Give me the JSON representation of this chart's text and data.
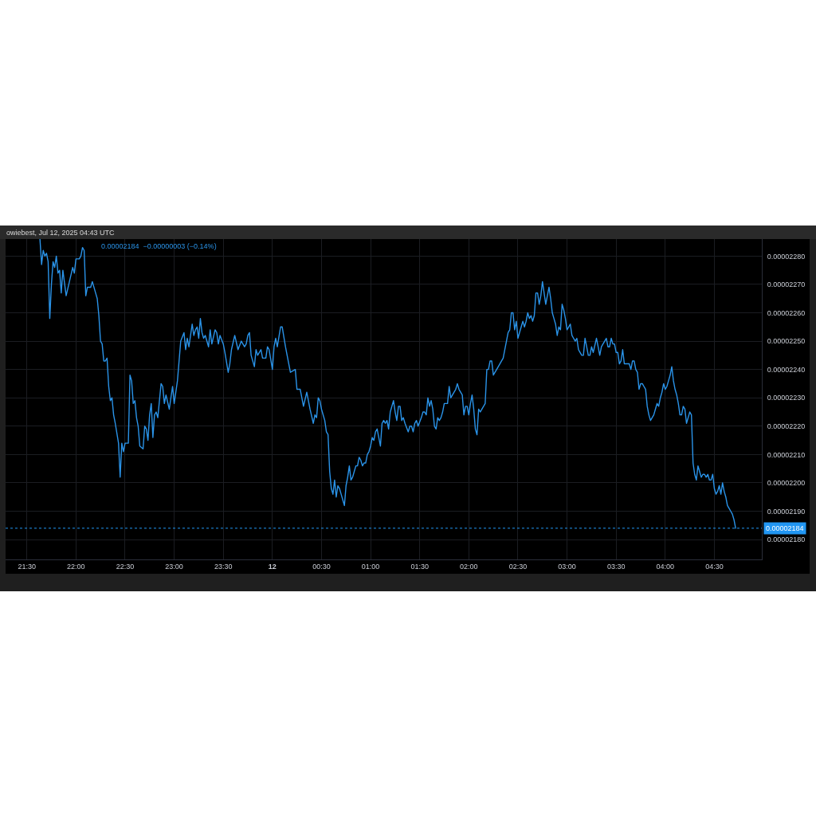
{
  "chart_data": {
    "type": "line",
    "subtitle": "0.00002184  −0.00000003 (−0.14%)",
    "annotations": [
      "owiebest, Jul 12, 2025 04:43 UTC"
    ],
    "x": [
      "2025-07-11T21:38",
      "2025-07-11T21:39",
      "2025-07-11T21:40",
      "2025-07-11T21:41",
      "2025-07-11T21:42",
      "2025-07-11T21:43",
      "2025-07-11T21:44",
      "2025-07-11T21:45",
      "2025-07-11T21:46",
      "2025-07-11T21:47",
      "2025-07-11T21:48",
      "2025-07-11T21:49",
      "2025-07-11T21:50",
      "2025-07-11T21:51",
      "2025-07-11T21:52",
      "2025-07-11T21:54",
      "2025-07-11T21:56",
      "2025-07-11T21:58",
      "2025-07-11T21:59",
      "2025-07-11T22:00",
      "2025-07-11T22:02",
      "2025-07-11T22:03",
      "2025-07-11T22:04",
      "2025-07-11T22:05",
      "2025-07-11T22:06",
      "2025-07-11T22:07",
      "2025-07-11T22:09",
      "2025-07-11T22:10",
      "2025-07-11T22:12",
      "2025-07-11T22:13",
      "2025-07-11T22:14",
      "2025-07-11T22:15",
      "2025-07-11T22:16",
      "2025-07-11T22:17",
      "2025-07-11T22:18",
      "2025-07-11T22:19",
      "2025-07-11T22:20",
      "2025-07-11T22:21",
      "2025-07-11T22:22",
      "2025-07-11T22:23",
      "2025-07-11T22:24",
      "2025-07-11T22:26",
      "2025-07-11T22:27",
      "2025-07-11T22:28",
      "2025-07-11T22:29",
      "2025-07-11T22:30",
      "2025-07-11T22:32",
      "2025-07-11T22:33",
      "2025-07-11T22:34",
      "2025-07-11T22:35",
      "2025-07-11T22:36",
      "2025-07-11T22:37",
      "2025-07-11T22:38",
      "2025-07-11T22:39",
      "2025-07-11T22:41",
      "2025-07-11T22:42",
      "2025-07-11T22:43",
      "2025-07-11T22:44",
      "2025-07-11T22:45",
      "2025-07-11T22:46",
      "2025-07-11T22:47",
      "2025-07-11T22:48",
      "2025-07-11T22:49",
      "2025-07-11T22:50",
      "2025-07-11T22:52",
      "2025-07-11T22:53",
      "2025-07-11T22:54",
      "2025-07-11T22:55",
      "2025-07-11T22:57",
      "2025-07-11T22:59",
      "2025-07-11T23:00",
      "2025-07-11T23:02",
      "2025-07-11T23:03",
      "2025-07-11T23:04",
      "2025-07-11T23:06",
      "2025-07-11T23:07",
      "2025-07-11T23:08",
      "2025-07-11T23:09",
      "2025-07-11T23:11",
      "2025-07-11T23:12",
      "2025-07-11T23:13",
      "2025-07-11T23:14",
      "2025-07-11T23:15",
      "2025-07-11T23:16",
      "2025-07-11T23:17",
      "2025-07-11T23:18",
      "2025-07-11T23:19",
      "2025-07-11T23:21",
      "2025-07-11T23:22",
      "2025-07-11T23:23",
      "2025-07-11T23:25",
      "2025-07-11T23:26",
      "2025-07-11T23:27",
      "2025-07-11T23:28",
      "2025-07-11T23:30",
      "2025-07-11T23:31",
      "2025-07-11T23:33",
      "2025-07-11T23:34",
      "2025-07-11T23:35",
      "2025-07-11T23:37",
      "2025-07-11T23:39",
      "2025-07-11T23:41",
      "2025-07-11T23:43",
      "2025-07-11T23:44",
      "2025-07-11T23:45",
      "2025-07-11T23:46",
      "2025-07-11T23:47",
      "2025-07-11T23:49",
      "2025-07-11T23:50",
      "2025-07-11T23:51",
      "2025-07-11T23:53",
      "2025-07-11T23:54",
      "2025-07-11T23:56",
      "2025-07-11T23:57",
      "2025-07-11T23:58",
      "2025-07-12T00:00",
      "2025-07-12T00:01",
      "2025-07-12T00:02",
      "2025-07-12T00:03",
      "2025-07-12T00:05",
      "2025-07-12T00:06",
      "2025-07-12T00:08",
      "2025-07-12T00:09",
      "2025-07-12T00:11",
      "2025-07-12T00:14",
      "2025-07-12T00:15",
      "2025-07-12T00:17",
      "2025-07-12T00:19",
      "2025-07-12T00:21",
      "2025-07-12T00:23",
      "2025-07-12T00:25",
      "2025-07-12T00:26",
      "2025-07-12T00:27",
      "2025-07-12T00:28",
      "2025-07-12T00:29",
      "2025-07-12T00:30",
      "2025-07-12T00:32",
      "2025-07-12T00:33",
      "2025-07-12T00:34",
      "2025-07-12T00:35",
      "2025-07-12T00:36",
      "2025-07-12T00:37",
      "2025-07-12T00:38",
      "2025-07-12T00:39",
      "2025-07-12T00:40",
      "2025-07-12T00:41",
      "2025-07-12T00:42",
      "2025-07-12T00:43",
      "2025-07-12T00:44",
      "2025-07-12T00:45",
      "2025-07-12T00:46",
      "2025-07-12T00:47",
      "2025-07-12T00:48",
      "2025-07-12T00:49",
      "2025-07-12T00:50",
      "2025-07-12T00:51",
      "2025-07-12T00:52",
      "2025-07-12T00:53",
      "2025-07-12T00:54",
      "2025-07-12T00:55",
      "2025-07-12T00:56",
      "2025-07-12T00:57",
      "2025-07-12T00:58",
      "2025-07-12T00:59",
      "2025-07-12T01:00",
      "2025-07-12T01:01",
      "2025-07-12T01:02",
      "2025-07-12T01:03",
      "2025-07-12T01:04",
      "2025-07-12T01:05",
      "2025-07-12T01:06",
      "2025-07-12T01:07",
      "2025-07-12T01:08",
      "2025-07-12T01:09",
      "2025-07-12T01:10",
      "2025-07-12T01:11",
      "2025-07-12T01:12",
      "2025-07-12T01:14",
      "2025-07-12T01:15",
      "2025-07-12T01:16",
      "2025-07-12T01:17",
      "2025-07-12T01:18",
      "2025-07-12T01:19",
      "2025-07-12T01:20",
      "2025-07-12T01:21",
      "2025-07-12T01:23",
      "2025-07-12T01:24",
      "2025-07-12T01:25",
      "2025-07-12T01:26",
      "2025-07-12T01:27",
      "2025-07-12T01:28",
      "2025-07-12T01:29",
      "2025-07-12T01:31",
      "2025-07-12T01:32",
      "2025-07-12T01:33",
      "2025-07-12T01:34",
      "2025-07-12T01:35",
      "2025-07-12T01:36",
      "2025-07-12T01:37",
      "2025-07-12T01:38",
      "2025-07-12T01:39",
      "2025-07-12T01:40",
      "2025-07-12T01:41",
      "2025-07-12T01:42",
      "2025-07-12T01:43",
      "2025-07-12T01:44",
      "2025-07-12T01:45",
      "2025-07-12T01:47",
      "2025-07-12T01:48",
      "2025-07-12T01:49",
      "2025-07-12T01:51",
      "2025-07-12T01:52",
      "2025-07-12T01:53",
      "2025-07-12T01:54",
      "2025-07-12T01:55",
      "2025-07-12T01:56",
      "2025-07-12T01:57",
      "2025-07-12T01:58",
      "2025-07-12T01:59",
      "2025-07-12T02:00",
      "2025-07-12T02:01",
      "2025-07-12T02:02",
      "2025-07-12T02:03",
      "2025-07-12T02:04",
      "2025-07-12T02:05",
      "2025-07-12T02:06",
      "2025-07-12T02:07",
      "2025-07-12T02:08",
      "2025-07-12T02:10",
      "2025-07-12T02:11",
      "2025-07-12T02:12",
      "2025-07-12T02:13",
      "2025-07-12T02:14",
      "2025-07-12T02:15",
      "2025-07-12T02:16",
      "2025-07-12T02:17",
      "2025-07-12T02:18",
      "2025-07-12T02:20",
      "2025-07-12T02:21",
      "2025-07-12T02:22",
      "2025-07-12T02:23",
      "2025-07-12T02:24",
      "2025-07-12T02:25",
      "2025-07-12T02:26",
      "2025-07-12T02:27",
      "2025-07-12T02:28",
      "2025-07-12T02:29",
      "2025-07-12T02:30",
      "2025-07-12T02:31",
      "2025-07-12T02:32",
      "2025-07-12T02:33",
      "2025-07-12T02:34",
      "2025-07-12T02:35",
      "2025-07-12T02:36",
      "2025-07-12T02:37",
      "2025-07-12T02:38",
      "2025-07-12T02:39",
      "2025-07-12T02:40",
      "2025-07-12T02:41",
      "2025-07-12T02:42",
      "2025-07-12T02:43",
      "2025-07-12T02:44",
      "2025-07-12T02:45",
      "2025-07-12T02:46",
      "2025-07-12T02:47",
      "2025-07-12T02:48",
      "2025-07-12T02:49",
      "2025-07-12T02:50",
      "2025-07-12T02:51",
      "2025-07-12T02:52",
      "2025-07-12T02:53",
      "2025-07-12T02:54",
      "2025-07-12T02:55",
      "2025-07-12T02:56",
      "2025-07-12T02:57",
      "2025-07-12T02:58",
      "2025-07-12T02:59",
      "2025-07-12T03:00",
      "2025-07-12T03:01",
      "2025-07-12T03:02",
      "2025-07-12T03:03",
      "2025-07-12T03:04",
      "2025-07-12T03:05",
      "2025-07-12T03:06",
      "2025-07-12T03:07",
      "2025-07-12T03:08",
      "2025-07-12T03:09",
      "2025-07-12T03:10",
      "2025-07-12T03:11",
      "2025-07-12T03:12",
      "2025-07-12T03:13",
      "2025-07-12T03:14",
      "2025-07-12T03:15",
      "2025-07-12T03:16",
      "2025-07-12T03:18",
      "2025-07-12T03:19",
      "2025-07-12T03:20",
      "2025-07-12T03:21",
      "2025-07-12T03:23",
      "2025-07-12T03:24",
      "2025-07-12T03:25",
      "2025-07-12T03:26",
      "2025-07-12T03:27",
      "2025-07-12T03:28",
      "2025-07-12T03:29",
      "2025-07-12T03:30",
      "2025-07-12T03:31",
      "2025-07-12T03:32",
      "2025-07-12T03:33",
      "2025-07-12T03:34",
      "2025-07-12T03:35",
      "2025-07-12T03:37",
      "2025-07-12T03:38",
      "2025-07-12T03:39",
      "2025-07-12T03:40",
      "2025-07-12T03:41",
      "2025-07-12T03:42",
      "2025-07-12T03:43",
      "2025-07-12T03:44",
      "2025-07-12T03:45",
      "2025-07-12T03:46",
      "2025-07-12T03:47",
      "2025-07-12T03:48",
      "2025-07-12T03:49",
      "2025-07-12T03:50",
      "2025-07-12T03:51",
      "2025-07-12T03:52",
      "2025-07-12T03:53",
      "2025-07-12T03:54",
      "2025-07-12T03:55",
      "2025-07-12T03:56",
      "2025-07-12T03:57",
      "2025-07-12T03:58",
      "2025-07-12T03:59",
      "2025-07-12T04:00",
      "2025-07-12T04:01",
      "2025-07-12T04:02",
      "2025-07-12T04:03",
      "2025-07-12T04:04",
      "2025-07-12T04:05",
      "2025-07-12T04:06",
      "2025-07-12T04:07",
      "2025-07-12T04:08",
      "2025-07-12T04:09",
      "2025-07-12T04:10",
      "2025-07-12T04:11",
      "2025-07-12T04:12",
      "2025-07-12T04:13",
      "2025-07-12T04:14",
      "2025-07-12T04:15",
      "2025-07-12T04:16",
      "2025-07-12T04:17",
      "2025-07-12T04:18",
      "2025-07-12T04:19",
      "2025-07-12T04:20",
      "2025-07-12T04:21",
      "2025-07-12T04:22",
      "2025-07-12T04:23",
      "2025-07-12T04:24",
      "2025-07-12T04:25",
      "2025-07-12T04:26",
      "2025-07-12T04:27",
      "2025-07-12T04:28",
      "2025-07-12T04:29",
      "2025-07-12T04:30",
      "2025-07-12T04:31",
      "2025-07-12T04:32",
      "2025-07-12T04:33",
      "2025-07-12T04:34",
      "2025-07-12T04:35",
      "2025-07-12T04:36",
      "2025-07-12T04:37",
      "2025-07-12T04:38",
      "2025-07-12T04:39",
      "2025-07-12T04:40",
      "2025-07-12T04:41",
      "2025-07-12T04:42",
      "2025-07-12T04:43"
    ],
    "series": [
      {
        "color": "#2a93e8",
        "values": [
          2.286e-05,
          2.277e-05,
          2.282e-05,
          2.28e-05,
          2.281e-05,
          2.278e-05,
          2.258e-05,
          2.27e-05,
          2.278e-05,
          2.276e-05,
          2.28e-05,
          2.274e-05,
          2.275e-05,
          2.267e-05,
          2.275e-05,
          2.266e-05,
          2.271e-05,
          2.276e-05,
          2.274e-05,
          2.279e-05,
          2.279e-05,
          2.28e-05,
          2.283e-05,
          2.282e-05,
          2.266e-05,
          2.269e-05,
          2.269e-05,
          2.271e-05,
          2.267e-05,
          2.265e-05,
          2.259e-05,
          2.25e-05,
          2.249e-05,
          2.243e-05,
          2.243e-05,
          2.244e-05,
          2.234e-05,
          2.229e-05,
          2.23e-05,
          2.224e-05,
          2.221e-05,
          2.214e-05,
          2.202e-05,
          2.214e-05,
          2.211e-05,
          2.214e-05,
          2.214e-05,
          2.238e-05,
          2.236e-05,
          2.228e-05,
          2.229e-05,
          2.223e-05,
          2.22e-05,
          2.213e-05,
          2.212e-05,
          2.22e-05,
          2.219e-05,
          2.215e-05,
          2.224e-05,
          2.228e-05,
          2.216e-05,
          2.224e-05,
          2.225e-05,
          2.223e-05,
          2.235e-05,
          2.234e-05,
          2.228e-05,
          2.231e-05,
          2.226e-05,
          2.234e-05,
          2.228e-05,
          2.236e-05,
          2.243e-05,
          2.25e-05,
          2.253e-05,
          2.247e-05,
          2.251e-05,
          2.248e-05,
          2.256e-05,
          2.252e-05,
          2.254e-05,
          2.255e-05,
          2.251e-05,
          2.258e-05,
          2.253e-05,
          2.251e-05,
          2.252e-05,
          2.248e-05,
          2.254e-05,
          2.249e-05,
          2.254e-05,
          2.253e-05,
          2.249e-05,
          2.252e-05,
          2.249e-05,
          2.246e-05,
          2.239e-05,
          2.242e-05,
          2.247e-05,
          2.252e-05,
          2.247e-05,
          2.25e-05,
          2.248e-05,
          2.249e-05,
          2.252e-05,
          2.253e-05,
          2.245e-05,
          2.241e-05,
          2.247e-05,
          2.245e-05,
          2.247e-05,
          2.244e-05,
          2.244e-05,
          2.248e-05,
          2.247e-05,
          2.24e-05,
          2.248e-05,
          2.251e-05,
          2.248e-05,
          2.255e-05,
          2.255e-05,
          2.248e-05,
          2.245e-05,
          2.239e-05,
          2.24e-05,
          2.233e-05,
          2.233e-05,
          2.227e-05,
          2.232e-05,
          2.226e-05,
          2.221e-05,
          2.224e-05,
          2.223e-05,
          2.23e-05,
          2.229e-05,
          2.226e-05,
          2.222e-05,
          2.218e-05,
          2.217e-05,
          2.204e-05,
          2.198e-05,
          2.196e-05,
          2.201e-05,
          2.195e-05,
          2.199e-05,
          2.198e-05,
          2.196e-05,
          2.194e-05,
          2.192e-05,
          2.199e-05,
          2.202e-05,
          2.206e-05,
          2.201e-05,
          2.202e-05,
          2.204e-05,
          2.206e-05,
          2.206e-05,
          2.209e-05,
          2.208e-05,
          2.206e-05,
          2.207e-05,
          2.207e-05,
          2.21e-05,
          2.211e-05,
          2.213e-05,
          2.216e-05,
          2.215e-05,
          2.218e-05,
          2.219e-05,
          2.216e-05,
          2.213e-05,
          2.221e-05,
          2.222e-05,
          2.221e-05,
          2.222e-05,
          2.219e-05,
          2.225e-05,
          2.229e-05,
          2.225e-05,
          2.222e-05,
          2.227e-05,
          2.227e-05,
          2.222e-05,
          2.223e-05,
          2.221e-05,
          2.218e-05,
          2.22e-05,
          2.22e-05,
          2.218e-05,
          2.221e-05,
          2.222e-05,
          2.22e-05,
          2.223e-05,
          2.225e-05,
          2.225e-05,
          2.224e-05,
          2.23e-05,
          2.227e-05,
          2.229e-05,
          2.226e-05,
          2.22e-05,
          2.219e-05,
          2.223e-05,
          2.222e-05,
          2.223e-05,
          2.225e-05,
          2.228e-05,
          2.228e-05,
          2.234e-05,
          2.23e-05,
          2.232e-05,
          2.233e-05,
          2.235e-05,
          2.233e-05,
          2.232e-05,
          2.231e-05,
          2.224e-05,
          2.227e-05,
          2.227e-05,
          2.224e-05,
          2.228e-05,
          2.231e-05,
          2.226e-05,
          2.219e-05,
          2.217e-05,
          2.226e-05,
          2.225e-05,
          2.226e-05,
          2.228e-05,
          2.24e-05,
          2.24e-05,
          2.243e-05,
          2.243e-05,
          2.238e-05,
          2.239e-05,
          2.24e-05,
          2.241e-05,
          2.243e-05,
          2.244e-05,
          2.247e-05,
          2.25e-05,
          2.253e-05,
          2.254e-05,
          2.26e-05,
          2.26e-05,
          2.254e-05,
          2.257e-05,
          2.251e-05,
          2.253e-05,
          2.255e-05,
          2.257e-05,
          2.255e-05,
          2.257e-05,
          2.26e-05,
          2.258e-05,
          2.259e-05,
          2.257e-05,
          2.259e-05,
          2.267e-05,
          2.267e-05,
          2.263e-05,
          2.266e-05,
          2.271e-05,
          2.267e-05,
          2.263e-05,
          2.266e-05,
          2.269e-05,
          2.265e-05,
          2.26e-05,
          2.258e-05,
          2.256e-05,
          2.252e-05,
          2.255e-05,
          2.254e-05,
          2.263e-05,
          2.261e-05,
          2.258e-05,
          2.254e-05,
          2.255e-05,
          2.256e-05,
          2.252e-05,
          2.251e-05,
          2.25e-05,
          2.251e-05,
          2.247e-05,
          2.246e-05,
          2.245e-05,
          2.245e-05,
          2.251e-05,
          2.248e-05,
          2.245e-05,
          2.245e-05,
          2.248e-05,
          2.246e-05,
          2.251e-05,
          2.248e-05,
          2.245e-05,
          2.248e-05,
          2.25e-05,
          2.251e-05,
          2.248e-05,
          2.248e-05,
          2.251e-05,
          2.249e-05,
          2.249e-05,
          2.246e-05,
          2.246e-05,
          2.242e-05,
          2.243e-05,
          2.247e-05,
          2.242e-05,
          2.242e-05,
          2.242e-05,
          2.24e-05,
          2.243e-05,
          2.243e-05,
          2.24e-05,
          2.239e-05,
          2.233e-05,
          2.235e-05,
          2.235e-05,
          2.234e-05,
          2.233e-05,
          2.227e-05,
          2.224e-05,
          2.222e-05,
          2.223e-05,
          2.224e-05,
          2.226e-05,
          2.228e-05,
          2.227e-05,
          2.23e-05,
          2.232e-05,
          2.235e-05,
          2.233e-05,
          2.234e-05,
          2.236e-05,
          2.238e-05,
          2.241e-05,
          2.236e-05,
          2.233e-05,
          2.231e-05,
          2.228e-05,
          2.224e-05,
          2.224e-05,
          2.227e-05,
          2.226e-05,
          2.221e-05,
          2.223e-05,
          2.225e-05,
          2.224e-05,
          2.207e-05,
          2.203e-05,
          2.201e-05,
          2.206e-05,
          2.204e-05,
          2.202e-05,
          2.203e-05,
          2.203e-05,
          2.202e-05,
          2.203e-05,
          2.201e-05,
          2.201e-05,
          2.203e-05,
          2.198e-05,
          2.196e-05,
          2.197e-05,
          2.199e-05,
          2.196e-05,
          2.2e-05,
          2.197e-05,
          2.195e-05,
          2.192e-05,
          2.191e-05,
          2.19e-05,
          2.189e-05,
          2.187e-05,
          2.184e-05
        ]
      }
    ],
    "xlim": [
      "2025-07-11T21:17",
      "2025-07-12T04:59"
    ],
    "xticks": [
      {
        "value": "2025-07-11T21:30",
        "label": "21:30"
      },
      {
        "value": "2025-07-11T22:00",
        "label": "22:00"
      },
      {
        "value": "2025-07-11T22:30",
        "label": "22:30"
      },
      {
        "value": "2025-07-11T23:00",
        "label": "23:00"
      },
      {
        "value": "2025-07-11T23:30",
        "label": "23:30"
      },
      {
        "value": "2025-07-12T00:00",
        "label": "12"
      },
      {
        "value": "2025-07-12T00:30",
        "label": "00:30"
      },
      {
        "value": "2025-07-12T01:00",
        "label": "01:00"
      },
      {
        "value": "2025-07-12T01:30",
        "label": "01:30"
      },
      {
        "value": "2025-07-12T02:00",
        "label": "02:00"
      },
      {
        "value": "2025-07-12T02:30",
        "label": "02:30"
      },
      {
        "value": "2025-07-12T03:00",
        "label": "03:00"
      },
      {
        "value": "2025-07-12T03:30",
        "label": "03:30"
      },
      {
        "value": "2025-07-12T04:00",
        "label": "04:00"
      },
      {
        "value": "2025-07-12T04:30",
        "label": "04:30"
      }
    ],
    "ylim": [
      2.173e-05,
      2.286e-05
    ],
    "yticks": [
      {
        "value": 2.18e-05,
        "label": "0.00002180"
      },
      {
        "value": 2.19e-05,
        "label": "0.00002190"
      },
      {
        "value": 2.2e-05,
        "label": "0.00002200"
      },
      {
        "value": 2.21e-05,
        "label": "0.00002210"
      },
      {
        "value": 2.22e-05,
        "label": "0.00002220"
      },
      {
        "value": 2.23e-05,
        "label": "0.00002230"
      },
      {
        "value": 2.24e-05,
        "label": "0.00002240"
      },
      {
        "value": 2.25e-05,
        "label": "0.00002250"
      },
      {
        "value": 2.26e-05,
        "label": "0.00002260"
      },
      {
        "value": 2.27e-05,
        "label": "0.00002270"
      },
      {
        "value": 2.28e-05,
        "label": "0.00002280"
      }
    ],
    "ref_lines": [
      {
        "axis": "y",
        "value": 2.184e-05,
        "label": "0.00002184",
        "color": "#2196f3",
        "line_style": "dotted"
      }
    ],
    "grid": true,
    "marker": "none",
    "line_style": "solid"
  }
}
